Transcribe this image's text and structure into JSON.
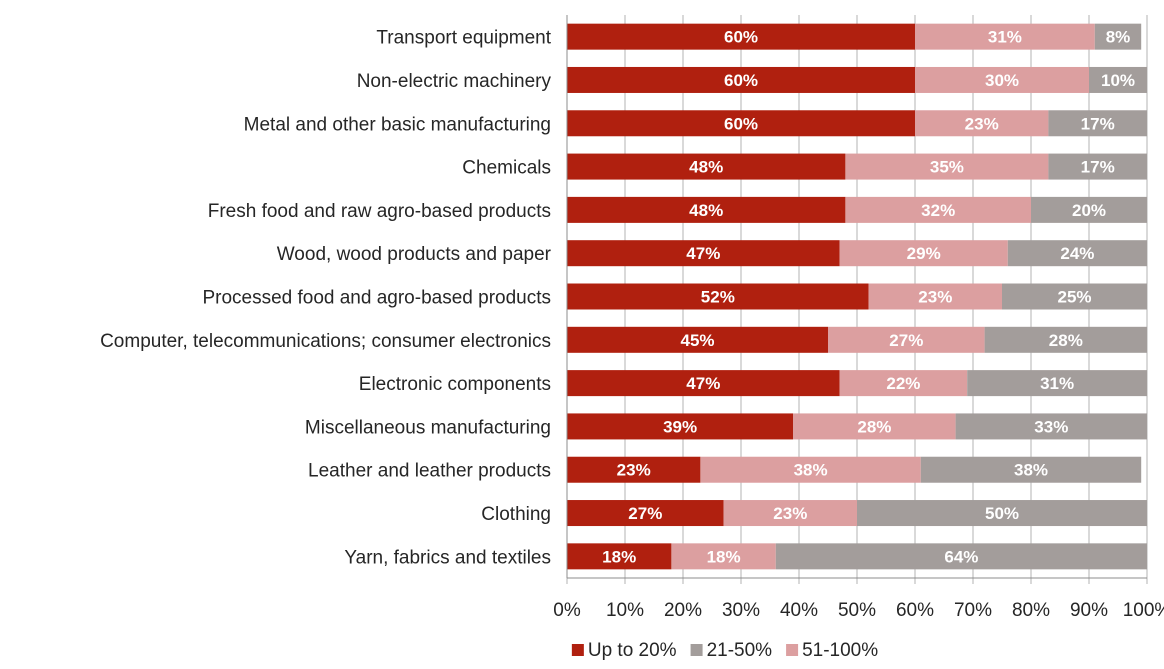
{
  "chart_data": {
    "type": "bar",
    "orientation": "horizontal",
    "stacked": true,
    "stack_order": [
      "Up to 20%",
      "51-100%",
      "21-50%"
    ],
    "categories": [
      "Transport equipment",
      "Non-electric machinery",
      "Metal and other basic manufacturing",
      "Chemicals",
      "Fresh food and raw agro-based products",
      "Wood, wood products and paper",
      "Processed food and agro-based products",
      "Computer, telecommunications; consumer electronics",
      "Electronic components",
      "Miscellaneous manufacturing",
      "Leather and leather products",
      "Clothing",
      "Yarn, fabrics and textiles"
    ],
    "series": [
      {
        "name": "Up to 20%",
        "color": "#b0200f",
        "values": [
          60,
          60,
          60,
          48,
          48,
          47,
          52,
          45,
          47,
          39,
          23,
          27,
          18
        ]
      },
      {
        "name": "21-50%",
        "color": "#a39d9b",
        "values": [
          8,
          10,
          17,
          17,
          20,
          24,
          25,
          28,
          31,
          33,
          38,
          50,
          64
        ]
      },
      {
        "name": "51-100%",
        "color": "#dc9fa0",
        "values": [
          31,
          30,
          23,
          35,
          32,
          29,
          23,
          27,
          22,
          28,
          38,
          23,
          18
        ]
      }
    ],
    "data_label_format": "{v}%",
    "x_ticks": [
      "0%",
      "10%",
      "20%",
      "30%",
      "40%",
      "50%",
      "60%",
      "70%",
      "80%",
      "90%",
      "100%"
    ],
    "xlim": [
      0,
      100
    ],
    "xlabel": "",
    "ylabel": "",
    "title": "",
    "grid": "vertical",
    "legend": {
      "position": "bottom",
      "order": [
        "Up to 20%",
        "21-50%",
        "51-100%"
      ]
    }
  },
  "colors": {
    "grid": "#b3b3b3",
    "axis": "#8c8c8c",
    "text": "#262626",
    "bar_label": "#ffffff"
  }
}
